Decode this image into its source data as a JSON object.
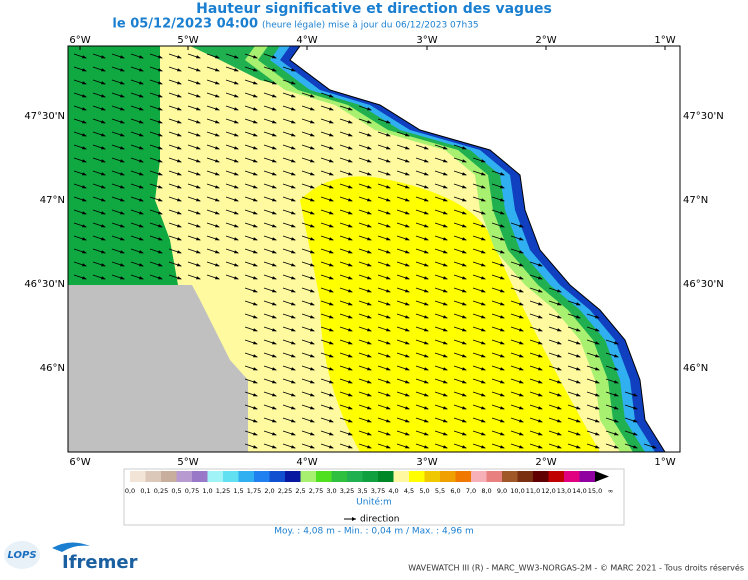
{
  "header": {
    "title": "Hauteur significative et direction des vagues",
    "date": "le 05/12/2023 04:00",
    "update": "(heure légale) mise à jour du 06/12/2023 07h35"
  },
  "map": {
    "lon_labels": [
      "6°W",
      "5°W",
      "4°W",
      "3°W",
      "2°W",
      "1°W"
    ],
    "lat_labels": [
      "47°30'N",
      "47°N",
      "46°30'N",
      "46°N"
    ]
  },
  "legend": {
    "labels": [
      "0,0",
      "0,1",
      "0,25",
      "0,5",
      "0,75",
      "1,0",
      "1,25",
      "1,5",
      "1,75",
      "2,0",
      "2,25",
      "2,5",
      "2,75",
      "3,0",
      "3,25",
      "3,5",
      "3,75",
      "4,0",
      "4,5",
      "5,0",
      "5,5",
      "6,0",
      "7,0",
      "8,0",
      "9,0",
      "10,0",
      "11,0",
      "12,0",
      "13,0",
      "14,0",
      "15,0",
      "∞"
    ],
    "colors": [
      "#f2e4d6",
      "#dcc8b8",
      "#c8ae9c",
      "#b79ad0",
      "#9a78c8",
      "#a0f4f8",
      "#60e0f0",
      "#30b0f0",
      "#2080f0",
      "#1050d0",
      "#0818a0",
      "#a8f070",
      "#50e020",
      "#30c040",
      "#20b050",
      "#10a040",
      "#008828",
      "#fff8a0",
      "#ffff00",
      "#f0c800",
      "#f0a000",
      "#f07800",
      "#f8b0b8",
      "#e88080",
      "#a05828",
      "#783010",
      "#600000",
      "#c00000",
      "#e00080",
      "#9000a0"
    ],
    "unit": "Unité:m",
    "direction": "direction"
  },
  "stats": "Moy. : 4,08 m  -  Min. : 0,04 m / Max. : 4,96 m",
  "footer": {
    "lops": "LOPS",
    "brand": "Ifremer",
    "credits": "WAVEWATCH III (R) - MARC_WW3-NORGAS-2M - © MARC 2021 - Tous droits réservés"
  }
}
